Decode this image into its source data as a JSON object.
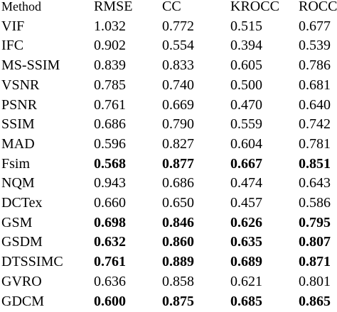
{
  "table": {
    "headers": [
      "Method",
      "RMSE",
      "CC",
      "KROCC",
      "ROCC"
    ],
    "rows": [
      {
        "method": "VIF",
        "rmse": "1.032",
        "cc": "0.772",
        "krocc": "0.515",
        "rocc": "0.677",
        "bold": false
      },
      {
        "method": "IFC",
        "rmse": "0.902",
        "cc": "0.554",
        "krocc": "0.394",
        "rocc": "0.539",
        "bold": false
      },
      {
        "method": "MS-SSIM",
        "rmse": "0.839",
        "cc": "0.833",
        "krocc": "0.605",
        "rocc": "0.786",
        "bold": false
      },
      {
        "method": "VSNR",
        "rmse": "0.785",
        "cc": "0.740",
        "krocc": "0.500",
        "rocc": "0.681",
        "bold": false
      },
      {
        "method": "PSNR",
        "rmse": "0.761",
        "cc": "0.669",
        "krocc": "0.470",
        "rocc": "0.640",
        "bold": false
      },
      {
        "method": "SSIM",
        "rmse": "0.686",
        "cc": "0.790",
        "krocc": "0.559",
        "rocc": "0.742",
        "bold": false
      },
      {
        "method": "MAD",
        "rmse": "0.596",
        "cc": "0.827",
        "krocc": "0.604",
        "rocc": "0.781",
        "bold": false
      },
      {
        "method": "Fsim",
        "rmse": "0.568",
        "cc": "0.877",
        "krocc": "0.667",
        "rocc": "0.851",
        "bold": true
      },
      {
        "method": "NQM",
        "rmse": "0.943",
        "cc": "0.686",
        "krocc": "0.474",
        "rocc": "0.643",
        "bold": false
      },
      {
        "method": "DCTex",
        "rmse": "0.660",
        "cc": "0.650",
        "krocc": "0.457",
        "rocc": "0.586",
        "bold": false
      },
      {
        "method": "GSM",
        "rmse": "0.698",
        "cc": "0.846",
        "krocc": "0.626",
        "rocc": "0.795",
        "bold": true
      },
      {
        "method": "GSDM",
        "rmse": "0.632",
        "cc": "0.860",
        "krocc": "0.635",
        "rocc": "0.807",
        "bold": true
      },
      {
        "method": "DTSSIMC",
        "rmse": "0.761",
        "cc": "0.889",
        "krocc": "0.689",
        "rocc": "0.871",
        "bold": true
      },
      {
        "method": "GVRO",
        "rmse": "0.636",
        "cc": "0.858",
        "krocc": "0.621",
        "rocc": "0.801",
        "bold": false
      },
      {
        "method": "GDCM",
        "rmse": "0.600",
        "cc": "0.875",
        "krocc": "0.685",
        "rocc": "0.865",
        "bold": true
      }
    ]
  }
}
